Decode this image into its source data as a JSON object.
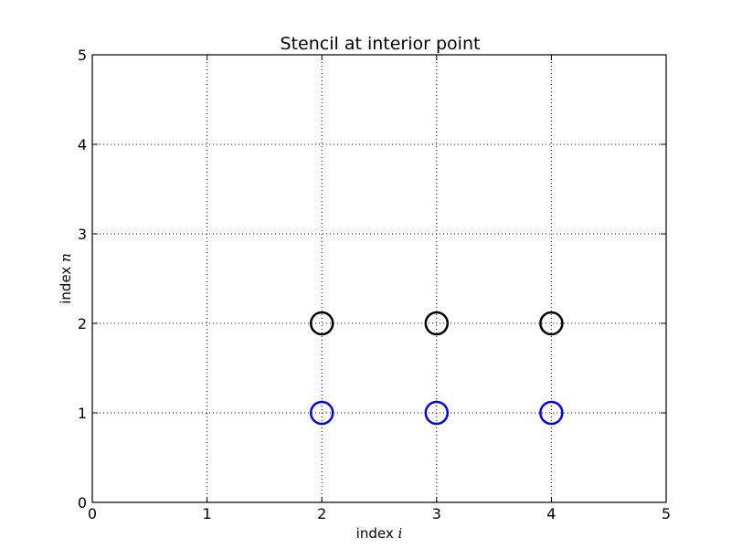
{
  "chart_data": {
    "type": "scatter",
    "title": "Stencil at interior point",
    "xlabel": "index",
    "xlabel_var": "i",
    "ylabel": "index",
    "ylabel_var": "n",
    "xlim": [
      0,
      5
    ],
    "ylim": [
      0,
      5
    ],
    "xticks": [
      "0",
      "1",
      "2",
      "3",
      "4",
      "5"
    ],
    "yticks": [
      "0",
      "1",
      "2",
      "3",
      "4",
      "5"
    ],
    "grid": true,
    "marker": "open-circle",
    "series": [
      {
        "color": "#000000",
        "points": [
          {
            "x": 2,
            "y": 2
          },
          {
            "x": 3,
            "y": 2
          },
          {
            "x": 4,
            "y": 2
          }
        ]
      },
      {
        "color": "#0000ff",
        "points": [
          {
            "x": 2,
            "y": 1
          },
          {
            "x": 3,
            "y": 1
          },
          {
            "x": 4,
            "y": 1
          }
        ]
      }
    ]
  }
}
